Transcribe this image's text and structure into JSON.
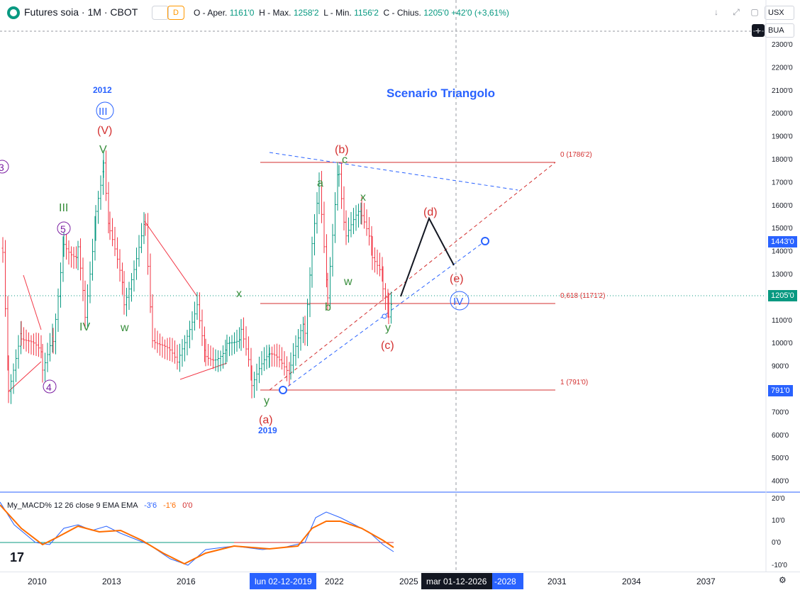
{
  "header": {
    "symbol": "Futures soia · 1M · CBOT",
    "compare_label": "",
    "d_label": "D",
    "ohlc": {
      "open_label": "O - Aper.",
      "open": "1161'0",
      "high_label": "H - Max.",
      "high": "1258'2",
      "low_label": "L - Min.",
      "low": "1156'2",
      "close_label": "C - Chius.",
      "close": "1205'0",
      "change": "+42'0 (+3,61%)"
    },
    "currency": "USX",
    "unit": "BUA"
  },
  "price_axis": {
    "labels": [
      "2300'0",
      "2200'0",
      "2100'0",
      "2000'0",
      "1900'0",
      "1800'0",
      "1700'0",
      "1600'0",
      "1500'0",
      "1400'0",
      "1300'0",
      "1200'0",
      "1100'0",
      "1000'0",
      "900'0",
      "800'0",
      "700'0",
      "600'0",
      "500'0",
      "400'0"
    ],
    "tag_target": "1443'0",
    "tag_current": "1205'0",
    "tag_low": "791'0"
  },
  "macd_axis": {
    "labels": [
      "20'0",
      "10'0",
      "0'0",
      "-10'0"
    ]
  },
  "macd": {
    "name": "My_MACD% 12 26 close 9 EMA EMA",
    "v1": "-3'6",
    "v2": "-1'6",
    "v3": "0'0"
  },
  "time_axis": {
    "labels": [
      "2010",
      "2013",
      "2016",
      "2022",
      "2025",
      "2031",
      "2034",
      "2037"
    ],
    "cursor_left": "lun 02-12-2019",
    "cursor_right": "mar 01-12-2026",
    "partial": "-2028"
  },
  "annotations": {
    "title": "Scenario Triangolo",
    "fib_0": "0 (1786'2)",
    "fib_618": "0,618 (1171'2)",
    "fib_1": "1 (791'0)",
    "year_2012": "2012",
    "year_2019": "2019",
    "III": "III",
    "V_red": "(V)",
    "V_green": "V",
    "III_green": "III",
    "five": "5",
    "four": "4",
    "three": "3",
    "IV_green": "IV",
    "w1": "w",
    "x1": "x",
    "y1": "y",
    "a_red": "(a)",
    "b_red": "(b)",
    "c_red": "(c)",
    "d_red": "(d)",
    "e_red": "(e)",
    "a_green": "a",
    "b_green": "b",
    "c_green": "c",
    "x2": "x",
    "w2": "w",
    "y2": "y",
    "IV_blue": "IV"
  },
  "colors": {
    "up": "#089981",
    "down": "#f23645",
    "blue": "#2962ff",
    "fib": "#d32f2f",
    "macd": "#2962ff",
    "signal": "#ff6d00"
  }
}
